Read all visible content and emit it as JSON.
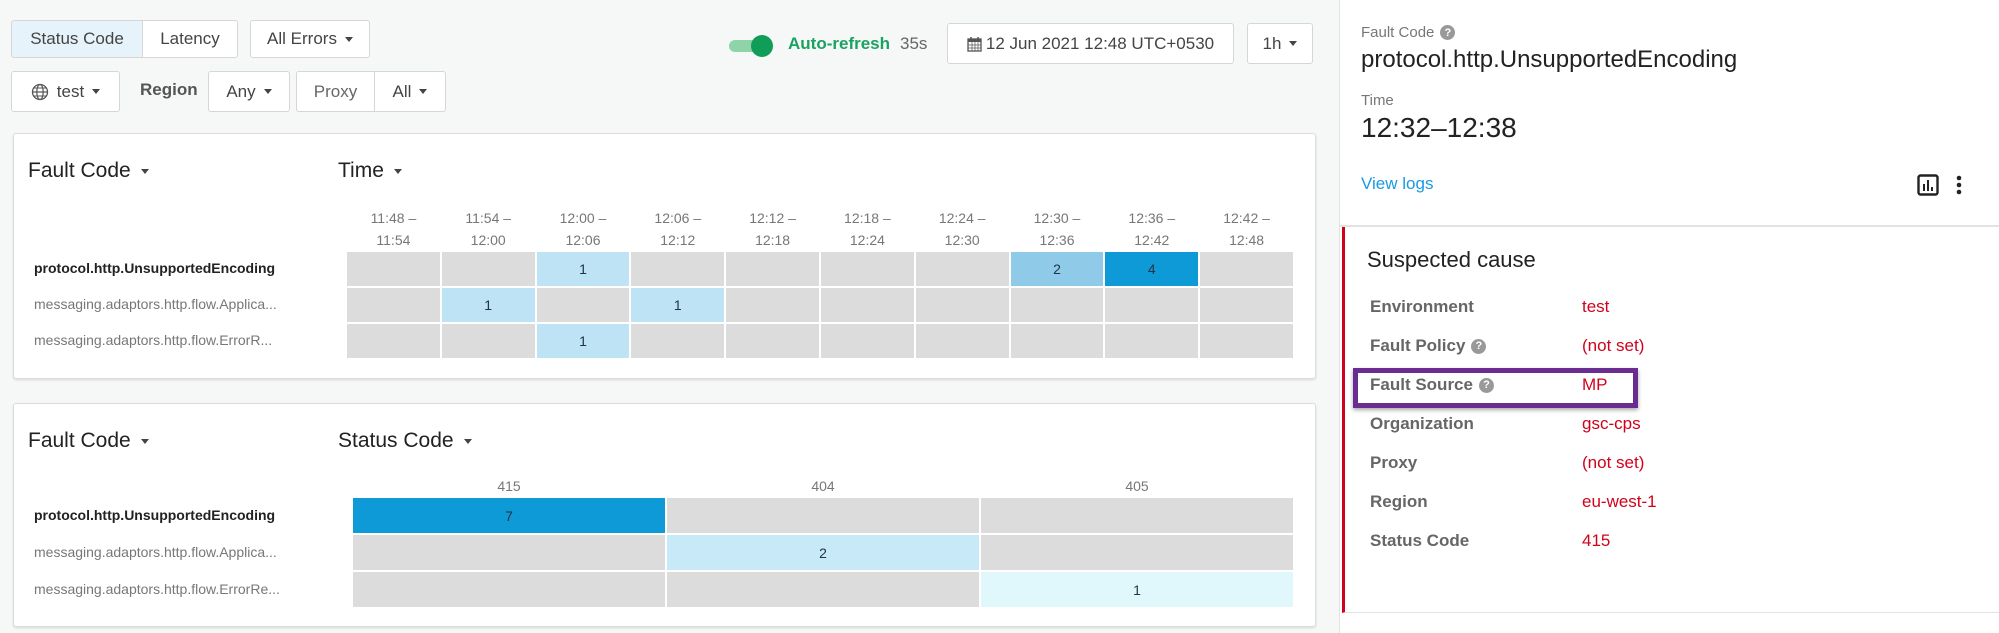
{
  "toolbar": {
    "metric_tabs": [
      {
        "label": "Status Code",
        "selected": true
      },
      {
        "label": "Latency",
        "selected": false
      }
    ],
    "errors_filter": "All Errors",
    "environment": "test",
    "region_label": "Region",
    "region_value": "Any",
    "proxy_label": "Proxy",
    "proxy_value": "All",
    "auto_refresh_label": "Auto-refresh",
    "auto_refresh_on": true,
    "auto_refresh_countdown": "35s",
    "date": "12 Jun 2021 12:48 UTC+0530",
    "range": "1h",
    "colors": {
      "toggle": "#0f9d58",
      "accent_text": "#1aa260"
    }
  },
  "chart_data": [
    {
      "type": "heatmap",
      "row_header": "Fault Code",
      "col_header": "Time",
      "columns": [
        [
          "11:48 –",
          "11:54"
        ],
        [
          "11:54 –",
          "12:00"
        ],
        [
          "12:00 –",
          "12:06"
        ],
        [
          "12:06 –",
          "12:12"
        ],
        [
          "12:12 –",
          "12:18"
        ],
        [
          "12:18 –",
          "12:24"
        ],
        [
          "12:24 –",
          "12:30"
        ],
        [
          "12:30 –",
          "12:36"
        ],
        [
          "12:36 –",
          "12:42"
        ],
        [
          "12:42 –",
          "12:48"
        ]
      ],
      "rows": [
        "protocol.http.UnsupportedEncoding",
        "messaging.adaptors.http.flow.Applica...",
        "messaging.adaptors.http.flow.ErrorR..."
      ],
      "values": [
        [
          null,
          null,
          1,
          null,
          null,
          null,
          null,
          2,
          4,
          null
        ],
        [
          null,
          1,
          null,
          1,
          null,
          null,
          null,
          null,
          null,
          null
        ],
        [
          null,
          null,
          1,
          null,
          null,
          null,
          null,
          null,
          null,
          null
        ]
      ]
    },
    {
      "type": "heatmap",
      "row_header": "Fault Code",
      "col_header": "Status Code",
      "columns": [
        [
          "415"
        ],
        [
          "404"
        ],
        [
          "405"
        ]
      ],
      "rows": [
        "protocol.http.UnsupportedEncoding",
        "messaging.adaptors.http.flow.Applica...",
        "messaging.adaptors.http.flow.ErrorRe..."
      ],
      "values": [
        [
          7,
          null,
          null
        ],
        [
          null,
          2,
          null
        ],
        [
          null,
          null,
          1
        ]
      ]
    }
  ],
  "detail": {
    "fault_code_label": "Fault Code",
    "fault_code": "protocol.http.UnsupportedEncoding",
    "time_label": "Time",
    "time": "12:32–12:38",
    "view_logs": "View logs",
    "suspected_title": "Suspected cause",
    "rows": [
      {
        "key": "Environment",
        "value": "test",
        "help": false
      },
      {
        "key": "Fault Policy",
        "value": "(not set)",
        "help": true
      },
      {
        "key": "Fault Source",
        "value": "MP",
        "help": true,
        "highlighted": true
      },
      {
        "key": "Organization",
        "value": "gsc-cps",
        "help": false
      },
      {
        "key": "Proxy",
        "value": "(not set)",
        "help": false
      },
      {
        "key": "Region",
        "value": "eu-west-1",
        "help": false
      },
      {
        "key": "Status Code",
        "value": "415",
        "help": false
      }
    ],
    "colors": {
      "value": "#d0021b",
      "highlight": "#6a2c91",
      "link": "#1a9be0"
    }
  }
}
